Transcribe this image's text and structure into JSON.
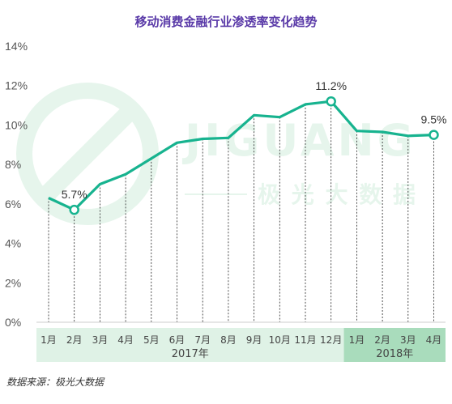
{
  "colors": {
    "line": "#17b38f",
    "title": "#5a3aa8",
    "band_2017": "#dff2e6",
    "band_2018": "#a9dcbc",
    "watermark": "#e6f5ec",
    "grid": "#222222"
  },
  "watermark": {
    "brand": "JIGUANG",
    "chinese": "极 光 大 数 据"
  },
  "source": "数据来源：极光大数据",
  "chart_data": {
    "type": "line",
    "title": "移动消费金融行业渗透率变化趋势",
    "xlabel": "",
    "ylabel": "",
    "ylim": [
      0,
      14
    ],
    "y_ticks": [
      "0%",
      "2%",
      "4%",
      "6%",
      "8%",
      "10%",
      "12%",
      "14%"
    ],
    "grid": "vertical dashed",
    "categories": [
      "1月",
      "2月",
      "3月",
      "4月",
      "5月",
      "6月",
      "7月",
      "8月",
      "9月",
      "10月",
      "11月",
      "12月",
      "1月",
      "2月",
      "3月",
      "4月"
    ],
    "groups": [
      {
        "label": "2017年",
        "start": 0,
        "end": 11
      },
      {
        "label": "2018年",
        "start": 12,
        "end": 15
      }
    ],
    "series": [
      {
        "values": [
          6.3,
          5.7,
          7.0,
          7.5,
          8.3,
          9.1,
          9.3,
          9.35,
          10.5,
          10.4,
          11.05,
          11.2,
          9.7,
          9.65,
          9.45,
          9.5
        ]
      }
    ],
    "annotations": [
      {
        "index": 1,
        "text": "5.7%"
      },
      {
        "index": 11,
        "text": "11.2%"
      },
      {
        "index": 15,
        "text": "9.5%"
      }
    ]
  }
}
